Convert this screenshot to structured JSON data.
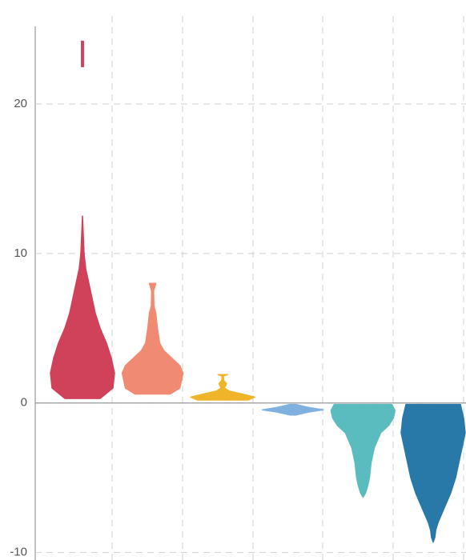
{
  "chart_data": {
    "type": "violin",
    "ylim": [
      -10.5,
      25
    ],
    "yticks": [
      -10,
      0,
      10,
      20
    ],
    "grid": true,
    "series": [
      {
        "color": "#d0415a",
        "y": [
          0.3,
          1,
          2,
          3,
          4,
          5,
          6,
          7,
          8,
          9,
          10,
          11,
          12.5,
          null,
          22.5,
          24.2
        ],
        "width": [
          0.55,
          0.95,
          1,
          0.9,
          0.75,
          0.55,
          0.4,
          0.3,
          0.2,
          0.1,
          0.05,
          0.03,
          0,
          null,
          0.03,
          0.03
        ]
      },
      {
        "color": "#f08a72",
        "y": [
          0.6,
          1,
          2,
          2.5,
          3,
          3.5,
          4,
          5,
          6,
          6.5,
          7.5,
          8
        ],
        "width": [
          0.55,
          0.85,
          0.95,
          0.85,
          0.6,
          0.35,
          0.22,
          0.15,
          0.1,
          0.04,
          0.03,
          0.1
        ]
      },
      {
        "color": "#f0b42a",
        "y": [
          0.2,
          0.4,
          0.6,
          0.8,
          1.0,
          1.3,
          1.5,
          1.8,
          1.9
        ],
        "width": [
          0.8,
          1.0,
          0.6,
          0.2,
          0.05,
          0.12,
          0.03,
          0.02,
          0.15
        ]
      },
      {
        "color": "#7fb0e0",
        "y": [
          -0.8,
          -0.6,
          -0.45,
          -0.3,
          -0.1
        ],
        "width": [
          0.1,
          0.5,
          0.95,
          0.5,
          0.1
        ]
      },
      {
        "color": "#5bbcc0",
        "y": [
          -6.3,
          -6,
          -5.5,
          -5,
          -4,
          -3,
          -2,
          -1.5,
          -1,
          -0.5,
          -0.1
        ],
        "width": [
          0,
          0.08,
          0.15,
          0.2,
          0.25,
          0.35,
          0.55,
          0.8,
          0.95,
          1.0,
          0.9
        ]
      },
      {
        "color": "#2878a8",
        "y": [
          -9.3,
          -9,
          -8.5,
          -8,
          -7,
          -6,
          -5,
          -4,
          -3,
          -2,
          -1,
          -0.1
        ],
        "width": [
          0,
          0.05,
          0.08,
          0.15,
          0.35,
          0.55,
          0.7,
          0.8,
          0.9,
          1.0,
          0.95,
          0.85
        ]
      }
    ]
  }
}
